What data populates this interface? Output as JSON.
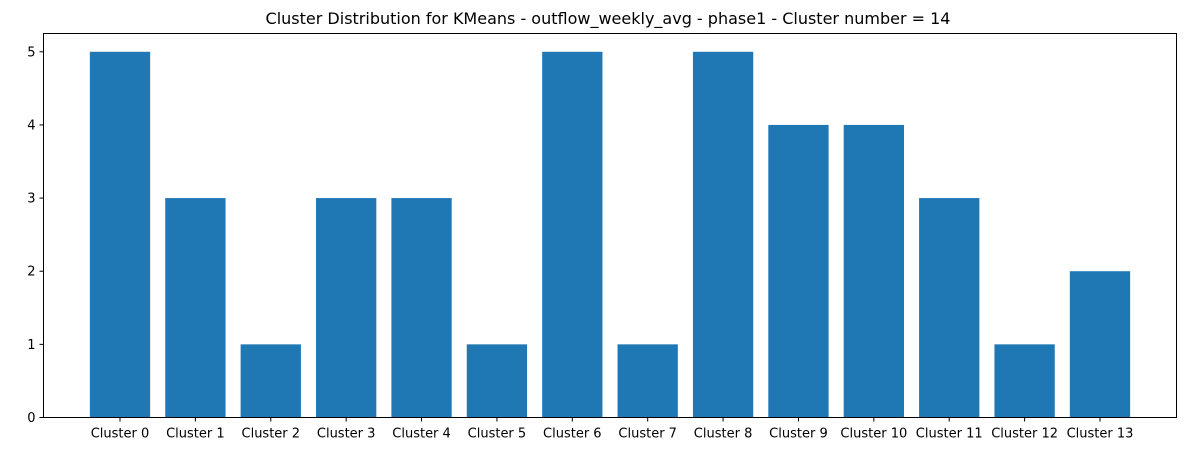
{
  "chart_data": {
    "type": "bar",
    "title": "Cluster Distribution for KMeans - outflow_weekly_avg - phase1 - Cluster number = 14",
    "xlabel": "",
    "ylabel": "",
    "categories": [
      "Cluster 0",
      "Cluster 1",
      "Cluster 2",
      "Cluster 3",
      "Cluster 4",
      "Cluster 5",
      "Cluster 6",
      "Cluster 7",
      "Cluster 8",
      "Cluster 9",
      "Cluster 10",
      "Cluster 11",
      "Cluster 12",
      "Cluster 13"
    ],
    "values": [
      5,
      3,
      1,
      3,
      3,
      1,
      5,
      1,
      5,
      4,
      4,
      3,
      1,
      2
    ],
    "ylim": [
      0,
      5.25
    ],
    "yticks": [
      0,
      1,
      2,
      3,
      4,
      5
    ],
    "grid": false,
    "legend": "none",
    "bar_color": "#1f77b4"
  }
}
